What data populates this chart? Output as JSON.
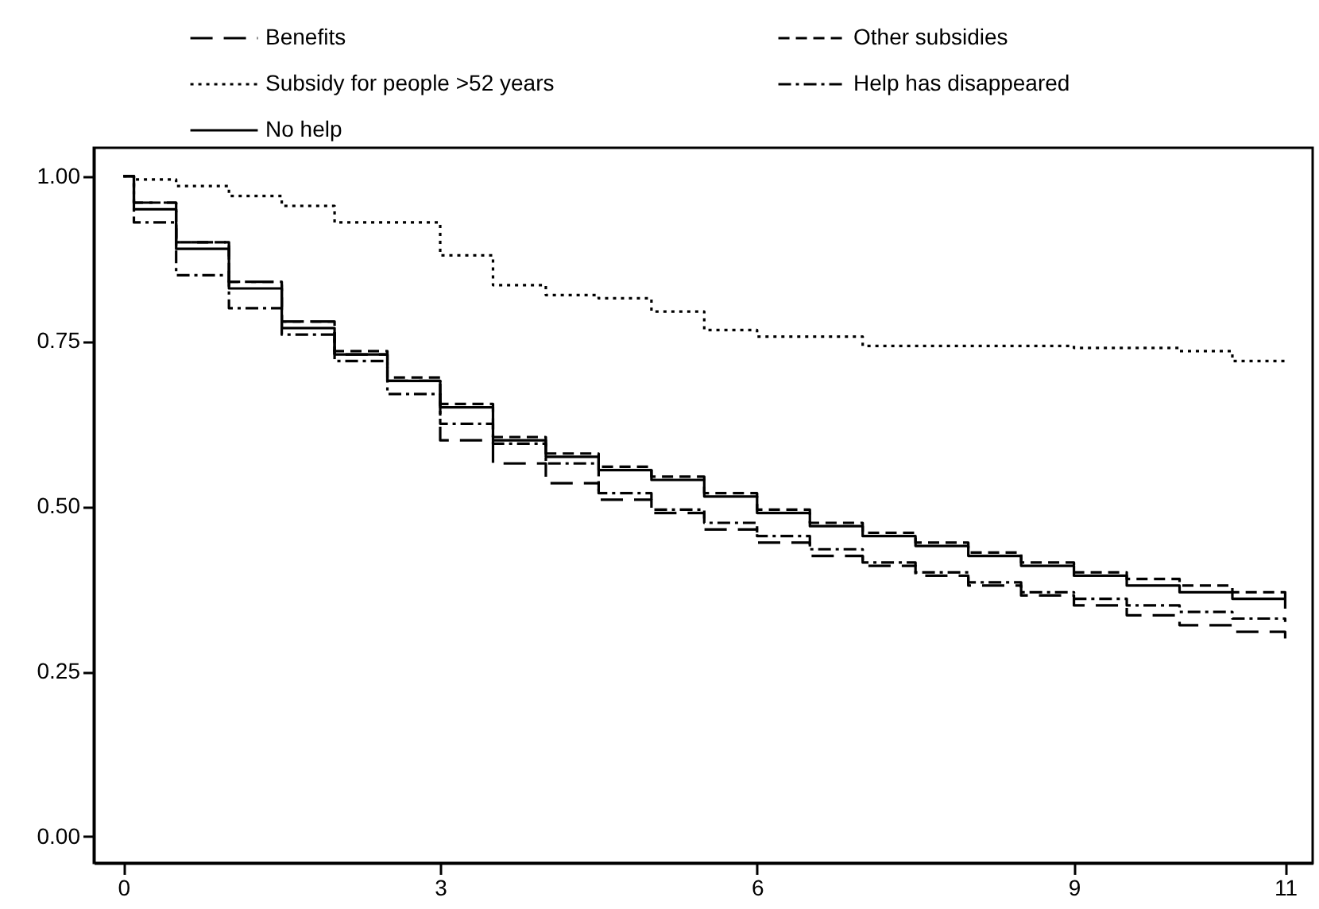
{
  "chart_data": {
    "type": "step",
    "x": [
      0,
      0.1,
      0.5,
      1,
      1.5,
      2,
      2.5,
      3,
      3.5,
      4,
      4.5,
      5,
      5.5,
      6,
      6.5,
      7,
      7.5,
      8,
      8.5,
      9,
      9.5,
      10,
      10.5,
      11
    ],
    "series": [
      {
        "name": "Benefits",
        "color": "#000000",
        "line_style": "longdash",
        "values": [
          1.0,
          0.96,
          0.9,
          0.84,
          0.78,
          0.73,
          0.69,
          0.6,
          0.565,
          0.535,
          0.51,
          0.49,
          0.465,
          0.445,
          0.425,
          0.41,
          0.395,
          0.38,
          0.365,
          0.35,
          0.335,
          0.32,
          0.31,
          0.3
        ]
      },
      {
        "name": "Other subsidies",
        "color": "#000000",
        "line_style": "dashed",
        "values": [
          1.0,
          0.96,
          0.9,
          0.84,
          0.78,
          0.735,
          0.695,
          0.655,
          0.605,
          0.58,
          0.56,
          0.545,
          0.52,
          0.495,
          0.475,
          0.46,
          0.445,
          0.43,
          0.415,
          0.4,
          0.39,
          0.38,
          0.37,
          0.355
        ]
      },
      {
        "name": "Subsidy for people >52 years",
        "color": "#000000",
        "line_style": "dotted",
        "values": [
          1.0,
          0.995,
          0.985,
          0.97,
          0.955,
          0.93,
          0.93,
          0.88,
          0.835,
          0.82,
          0.815,
          0.795,
          0.767,
          0.757,
          0.757,
          0.743,
          0.743,
          0.743,
          0.743,
          0.74,
          0.74,
          0.735,
          0.72,
          0.72
        ]
      },
      {
        "name": "Help has disappeared",
        "color": "#000000",
        "line_style": "dashdot",
        "values": [
          1.0,
          0.93,
          0.85,
          0.8,
          0.76,
          0.72,
          0.67,
          0.625,
          0.595,
          0.565,
          0.52,
          0.495,
          0.475,
          0.455,
          0.435,
          0.415,
          0.4,
          0.385,
          0.37,
          0.36,
          0.35,
          0.34,
          0.33,
          0.325
        ]
      },
      {
        "name": "No help",
        "color": "#000000",
        "line_style": "solid",
        "values": [
          1.0,
          0.95,
          0.89,
          0.83,
          0.77,
          0.73,
          0.69,
          0.65,
          0.6,
          0.575,
          0.555,
          0.54,
          0.515,
          0.49,
          0.47,
          0.455,
          0.44,
          0.425,
          0.41,
          0.395,
          0.38,
          0.37,
          0.36,
          0.345
        ]
      }
    ],
    "xlim": [
      -0.28,
      11.26
    ],
    "ylim": [
      -0.04,
      1.043
    ],
    "xticks": [
      0,
      3,
      6,
      9,
      11
    ],
    "yticks": [
      {
        "value": 0,
        "label": "0.00"
      },
      {
        "value": 0.25,
        "label": "0.25"
      },
      {
        "value": 0.5,
        "label": "0.50"
      },
      {
        "value": 0.75,
        "label": "0.75"
      },
      {
        "value": 1,
        "label": "1.00"
      }
    ],
    "legend": "top",
    "grid": false
  }
}
